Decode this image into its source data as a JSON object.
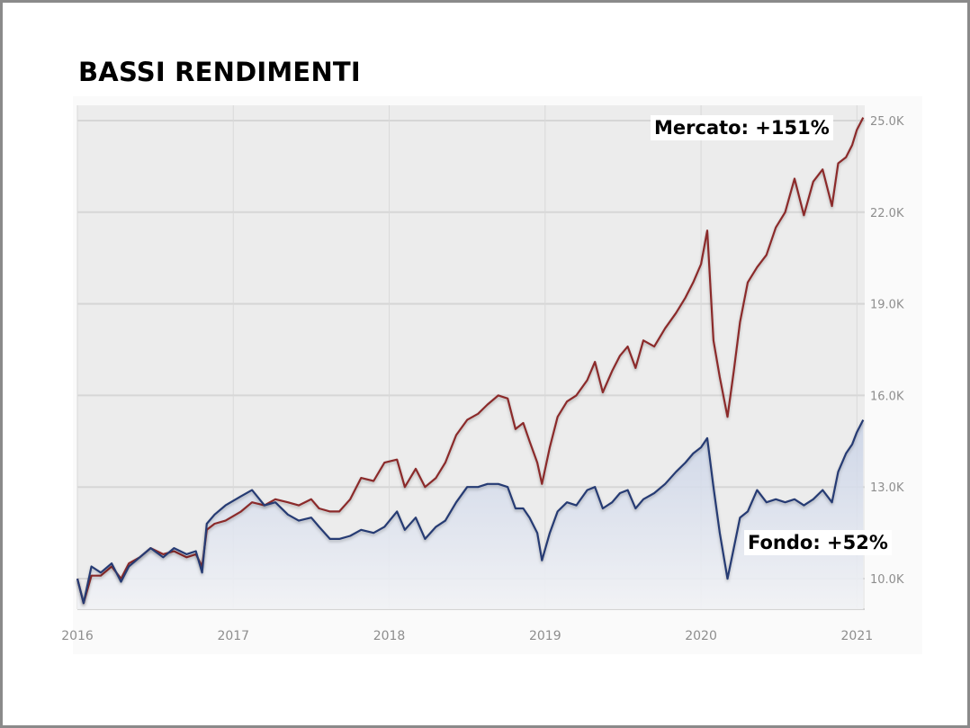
{
  "title": "BASSI RENDIMENTI",
  "chart_data": {
    "type": "line",
    "title": "BASSI RENDIMENTI",
    "x_ticks": [
      "2016",
      "2017",
      "2018",
      "2019",
      "2020",
      "2021"
    ],
    "y_ticks": [
      "10.0K",
      "13.0K",
      "16.0K",
      "19.0K",
      "22.0K",
      "25.0K"
    ],
    "ylim": [
      9000,
      25500
    ],
    "xlim": [
      2016.0,
      2021.05
    ],
    "grid": true,
    "series": [
      {
        "name": "Mercato",
        "color": "#8b2b2b",
        "annotation": "Mercato: +151%",
        "points": [
          [
            2016.0,
            10000
          ],
          [
            2016.04,
            9200
          ],
          [
            2016.09,
            10100
          ],
          [
            2016.15,
            10100
          ],
          [
            2016.22,
            10400
          ],
          [
            2016.28,
            10000
          ],
          [
            2016.33,
            10500
          ],
          [
            2016.4,
            10700
          ],
          [
            2016.47,
            11000
          ],
          [
            2016.55,
            10800
          ],
          [
            2016.62,
            10900
          ],
          [
            2016.7,
            10700
          ],
          [
            2016.76,
            10800
          ],
          [
            2016.8,
            10400
          ],
          [
            2016.83,
            11600
          ],
          [
            2016.88,
            11800
          ],
          [
            2016.95,
            11900
          ],
          [
            2017.05,
            12200
          ],
          [
            2017.12,
            12500
          ],
          [
            2017.2,
            12400
          ],
          [
            2017.27,
            12600
          ],
          [
            2017.35,
            12500
          ],
          [
            2017.42,
            12400
          ],
          [
            2017.5,
            12600
          ],
          [
            2017.55,
            12300
          ],
          [
            2017.62,
            12200
          ],
          [
            2017.68,
            12200
          ],
          [
            2017.75,
            12600
          ],
          [
            2017.82,
            13300
          ],
          [
            2017.9,
            13200
          ],
          [
            2017.97,
            13800
          ],
          [
            2018.05,
            13900
          ],
          [
            2018.1,
            13000
          ],
          [
            2018.17,
            13600
          ],
          [
            2018.23,
            13000
          ],
          [
            2018.3,
            13300
          ],
          [
            2018.36,
            13800
          ],
          [
            2018.43,
            14700
          ],
          [
            2018.5,
            15200
          ],
          [
            2018.57,
            15400
          ],
          [
            2018.63,
            15700
          ],
          [
            2018.7,
            16000
          ],
          [
            2018.76,
            15900
          ],
          [
            2018.81,
            14900
          ],
          [
            2018.86,
            15100
          ],
          [
            2018.9,
            14500
          ],
          [
            2018.95,
            13800
          ],
          [
            2018.98,
            13100
          ],
          [
            2019.03,
            14300
          ],
          [
            2019.08,
            15300
          ],
          [
            2019.14,
            15800
          ],
          [
            2019.2,
            16000
          ],
          [
            2019.27,
            16500
          ],
          [
            2019.32,
            17100
          ],
          [
            2019.37,
            16100
          ],
          [
            2019.43,
            16800
          ],
          [
            2019.48,
            17300
          ],
          [
            2019.53,
            17600
          ],
          [
            2019.58,
            16900
          ],
          [
            2019.63,
            17800
          ],
          [
            2019.7,
            17600
          ],
          [
            2019.77,
            18200
          ],
          [
            2019.84,
            18700
          ],
          [
            2019.9,
            19200
          ],
          [
            2019.95,
            19700
          ],
          [
            2020.0,
            20300
          ],
          [
            2020.04,
            21400
          ],
          [
            2020.08,
            17800
          ],
          [
            2020.12,
            16600
          ],
          [
            2020.17,
            15300
          ],
          [
            2020.21,
            16800
          ],
          [
            2020.25,
            18400
          ],
          [
            2020.3,
            19700
          ],
          [
            2020.36,
            20200
          ],
          [
            2020.42,
            20600
          ],
          [
            2020.48,
            21500
          ],
          [
            2020.54,
            22000
          ],
          [
            2020.6,
            23100
          ],
          [
            2020.66,
            21900
          ],
          [
            2020.72,
            23000
          ],
          [
            2020.78,
            23400
          ],
          [
            2020.84,
            22200
          ],
          [
            2020.88,
            23600
          ],
          [
            2020.93,
            23800
          ],
          [
            2020.97,
            24200
          ],
          [
            2021.0,
            24700
          ],
          [
            2021.04,
            25100
          ]
        ]
      },
      {
        "name": "Fondo",
        "color": "#253a73",
        "annotation": "Fondo: +52%",
        "points": [
          [
            2016.0,
            10000
          ],
          [
            2016.04,
            9200
          ],
          [
            2016.09,
            10400
          ],
          [
            2016.15,
            10200
          ],
          [
            2016.22,
            10500
          ],
          [
            2016.28,
            9900
          ],
          [
            2016.33,
            10400
          ],
          [
            2016.4,
            10700
          ],
          [
            2016.47,
            11000
          ],
          [
            2016.55,
            10700
          ],
          [
            2016.62,
            11000
          ],
          [
            2016.7,
            10800
          ],
          [
            2016.76,
            10900
          ],
          [
            2016.8,
            10200
          ],
          [
            2016.83,
            11800
          ],
          [
            2016.88,
            12100
          ],
          [
            2016.95,
            12400
          ],
          [
            2017.05,
            12700
          ],
          [
            2017.12,
            12900
          ],
          [
            2017.2,
            12400
          ],
          [
            2017.27,
            12500
          ],
          [
            2017.35,
            12100
          ],
          [
            2017.42,
            11900
          ],
          [
            2017.5,
            12000
          ],
          [
            2017.55,
            11700
          ],
          [
            2017.62,
            11300
          ],
          [
            2017.68,
            11300
          ],
          [
            2017.75,
            11400
          ],
          [
            2017.82,
            11600
          ],
          [
            2017.9,
            11500
          ],
          [
            2017.97,
            11700
          ],
          [
            2018.05,
            12200
          ],
          [
            2018.1,
            11600
          ],
          [
            2018.17,
            12000
          ],
          [
            2018.23,
            11300
          ],
          [
            2018.3,
            11700
          ],
          [
            2018.36,
            11900
          ],
          [
            2018.43,
            12500
          ],
          [
            2018.5,
            13000
          ],
          [
            2018.57,
            13000
          ],
          [
            2018.63,
            13100
          ],
          [
            2018.7,
            13100
          ],
          [
            2018.76,
            13000
          ],
          [
            2018.81,
            12300
          ],
          [
            2018.86,
            12300
          ],
          [
            2018.9,
            12000
          ],
          [
            2018.95,
            11500
          ],
          [
            2018.98,
            10600
          ],
          [
            2019.03,
            11500
          ],
          [
            2019.08,
            12200
          ],
          [
            2019.14,
            12500
          ],
          [
            2019.2,
            12400
          ],
          [
            2019.27,
            12900
          ],
          [
            2019.32,
            13000
          ],
          [
            2019.37,
            12300
          ],
          [
            2019.43,
            12500
          ],
          [
            2019.48,
            12800
          ],
          [
            2019.53,
            12900
          ],
          [
            2019.58,
            12300
          ],
          [
            2019.63,
            12600
          ],
          [
            2019.7,
            12800
          ],
          [
            2019.77,
            13100
          ],
          [
            2019.84,
            13500
          ],
          [
            2019.9,
            13800
          ],
          [
            2019.95,
            14100
          ],
          [
            2020.0,
            14300
          ],
          [
            2020.04,
            14600
          ],
          [
            2020.08,
            13000
          ],
          [
            2020.12,
            11500
          ],
          [
            2020.17,
            10000
          ],
          [
            2020.21,
            11000
          ],
          [
            2020.25,
            12000
          ],
          [
            2020.3,
            12200
          ],
          [
            2020.36,
            12900
          ],
          [
            2020.42,
            12500
          ],
          [
            2020.48,
            12600
          ],
          [
            2020.54,
            12500
          ],
          [
            2020.6,
            12600
          ],
          [
            2020.66,
            12400
          ],
          [
            2020.72,
            12600
          ],
          [
            2020.78,
            12900
          ],
          [
            2020.84,
            12500
          ],
          [
            2020.88,
            13500
          ],
          [
            2020.93,
            14100
          ],
          [
            2020.97,
            14400
          ],
          [
            2021.0,
            14800
          ],
          [
            2021.04,
            15200
          ]
        ]
      }
    ]
  }
}
